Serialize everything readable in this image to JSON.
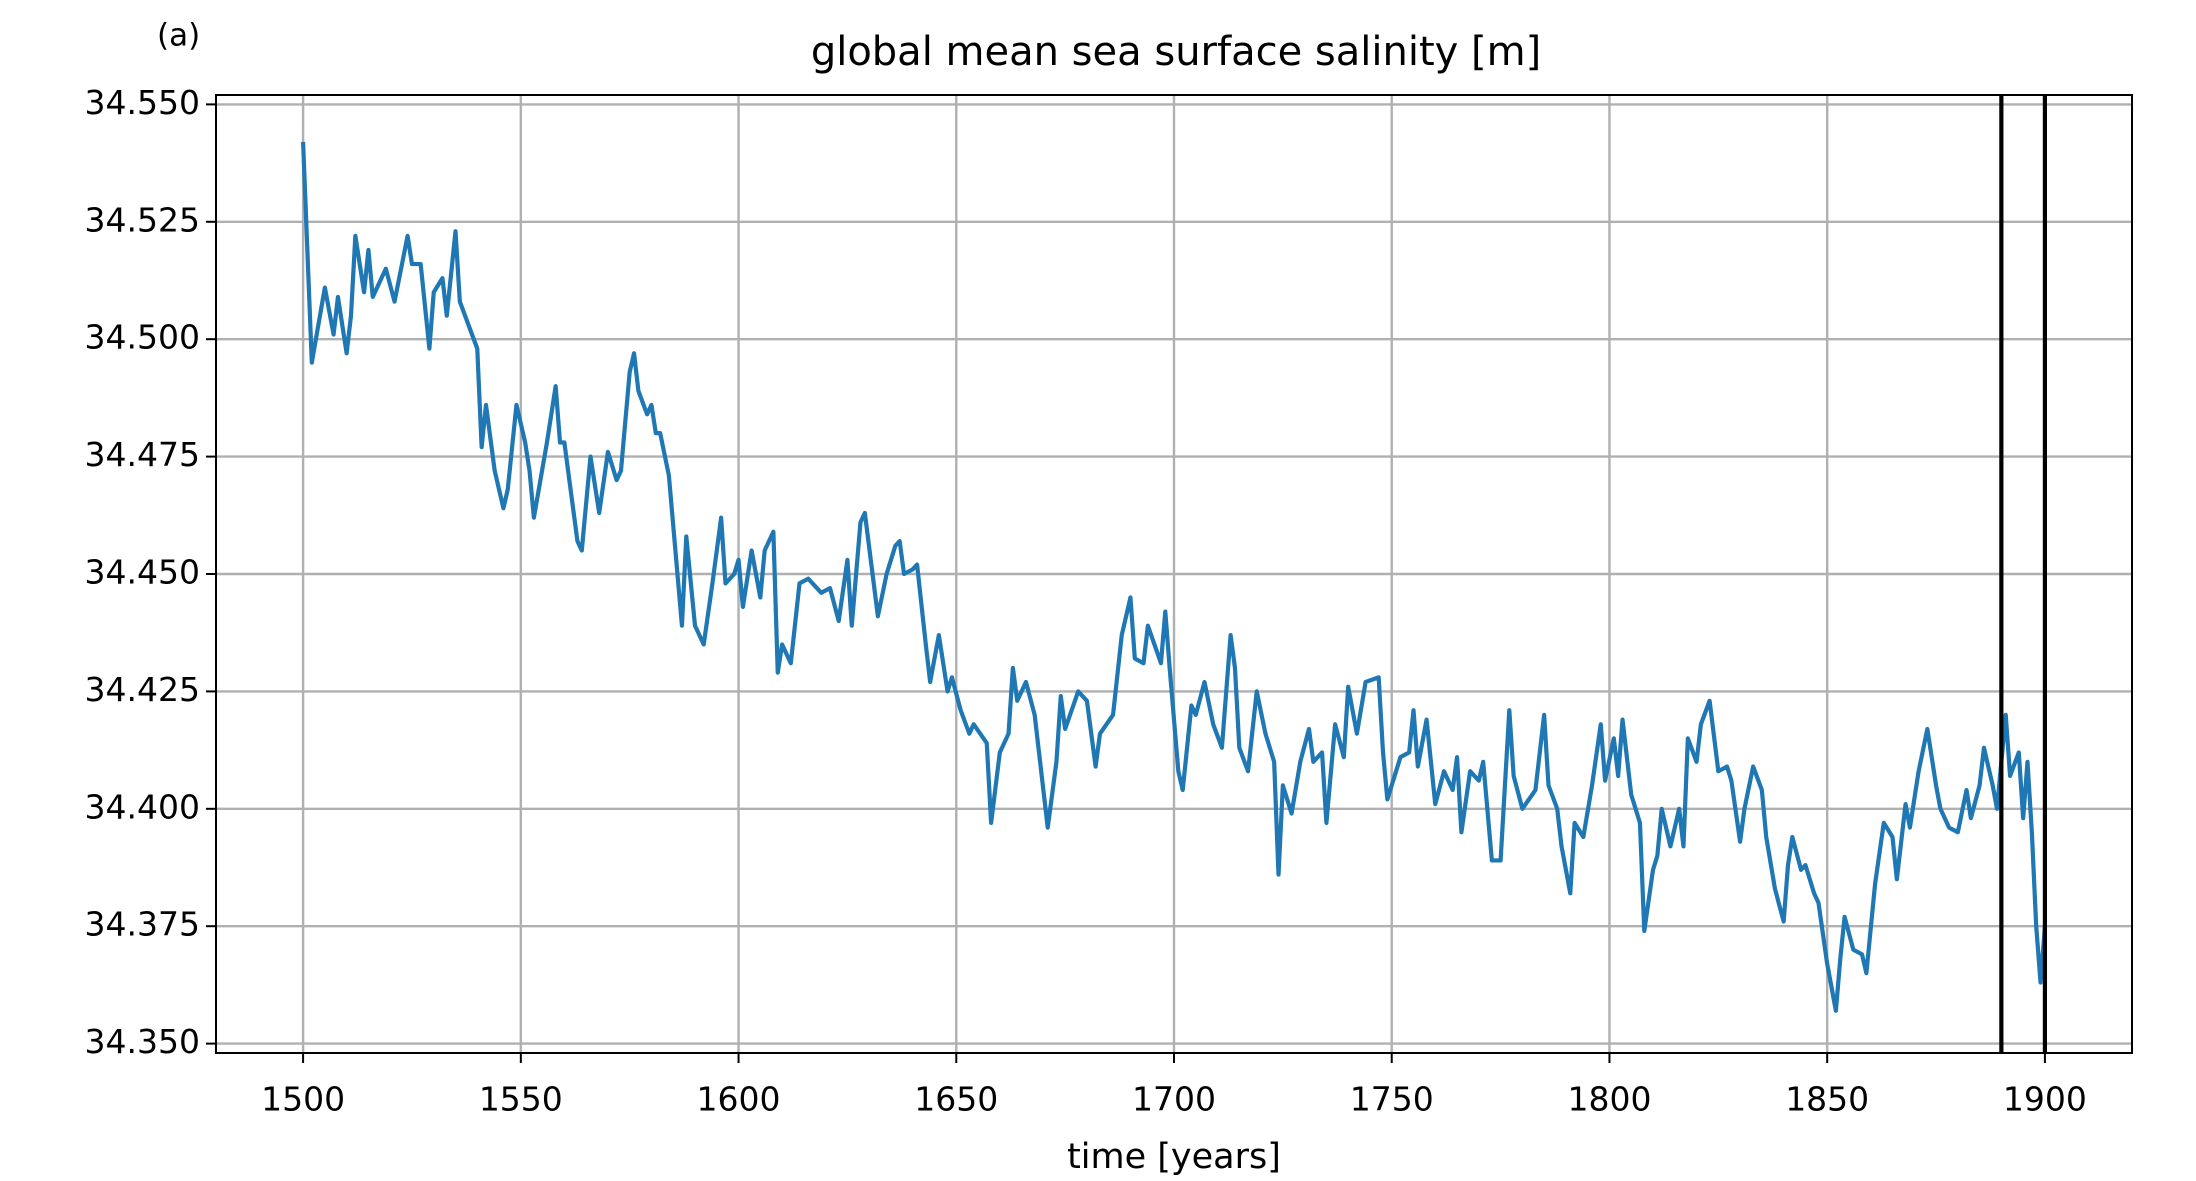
{
  "chart_data": {
    "type": "line",
    "title": "global mean sea surface salinity [m]",
    "annotation": "(a)",
    "xlabel": "time [years]",
    "xlim": [
      1480,
      1920
    ],
    "ylim": [
      34.348,
      34.552
    ],
    "xticks": [
      1500,
      1550,
      1600,
      1650,
      1700,
      1750,
      1800,
      1850,
      1900
    ],
    "yticks": [
      {
        "value": 34.35,
        "label": "34.350"
      },
      34.375,
      {
        "value": 34.4,
        "label": "34.400"
      },
      34.425,
      {
        "value": 34.45,
        "label": "34.450"
      },
      34.475,
      {
        "value": 34.5,
        "label": "34.500"
      },
      34.525,
      {
        "value": 34.55,
        "label": "34.550"
      }
    ],
    "grid": true,
    "vlines": [
      1890,
      1900
    ],
    "vline_color": "#000000",
    "series": [
      {
        "color": "#1f77b4",
        "x": [
          1500,
          1502,
          1505,
          1507,
          1508,
          1510,
          1511,
          1512,
          1514,
          1515,
          1516,
          1519,
          1521,
          1524,
          1525,
          1527,
          1529,
          1530,
          1532,
          1533,
          1535,
          1536,
          1540,
          1541,
          1542,
          1544,
          1546,
          1547,
          1549,
          1551,
          1552,
          1553,
          1556,
          1558,
          1559,
          1560,
          1563,
          1564,
          1566,
          1568,
          1570,
          1572,
          1573,
          1575,
          1576,
          1577,
          1579,
          1580,
          1581,
          1582,
          1584,
          1587,
          1588,
          1590,
          1592,
          1594,
          1596,
          1597,
          1599,
          1600,
          1601,
          1603,
          1605,
          1606,
          1608,
          1609,
          1610,
          1612,
          1614,
          1616,
          1619,
          1621,
          1623,
          1625,
          1626,
          1628,
          1629,
          1632,
          1634,
          1636,
          1637,
          1638,
          1640,
          1641,
          1643,
          1644,
          1646,
          1648,
          1649,
          1651,
          1653,
          1654,
          1657,
          1658,
          1660,
          1662,
          1663,
          1664,
          1666,
          1668,
          1669,
          1671,
          1673,
          1674,
          1675,
          1678,
          1680,
          1682,
          1683,
          1686,
          1688,
          1690,
          1691,
          1693,
          1694,
          1697,
          1698,
          1699,
          1701,
          1702,
          1704,
          1705,
          1707,
          1709,
          1711,
          1713,
          1714,
          1715,
          1717,
          1719,
          1721,
          1723,
          1724,
          1725,
          1727,
          1729,
          1731,
          1732,
          1734,
          1735,
          1737,
          1739,
          1740,
          1742,
          1744,
          1747,
          1748,
          1749,
          1752,
          1754,
          1755,
          1756,
          1758,
          1760,
          1762,
          1764,
          1765,
          1766,
          1768,
          1770,
          1771,
          1773,
          1775,
          1777,
          1778,
          1780,
          1783,
          1785,
          1786,
          1788,
          1789,
          1791,
          1792,
          1794,
          1796,
          1798,
          1799,
          1801,
          1802,
          1803,
          1805,
          1807,
          1808,
          1810,
          1811,
          1812,
          1814,
          1816,
          1817,
          1818,
          1820,
          1821,
          1823,
          1825,
          1827,
          1828,
          1830,
          1831,
          1833,
          1835,
          1836,
          1838,
          1840,
          1841,
          1842,
          1844,
          1845,
          1847,
          1848,
          1850,
          1852,
          1853,
          1854,
          1856,
          1858,
          1859,
          1861,
          1863,
          1865,
          1866,
          1868,
          1869,
          1871,
          1873,
          1875,
          1876,
          1878,
          1880,
          1882,
          1883,
          1885,
          1886,
          1888,
          1889,
          1891,
          1892,
          1894,
          1895,
          1896,
          1897,
          1898,
          1899,
          1900
        ],
        "values": [
          34.542,
          34.495,
          34.511,
          34.501,
          34.509,
          34.497,
          34.505,
          34.522,
          34.51,
          34.519,
          34.509,
          34.515,
          34.508,
          34.522,
          34.516,
          34.516,
          34.498,
          34.51,
          34.513,
          34.505,
          34.523,
          34.508,
          34.498,
          34.477,
          34.486,
          34.472,
          34.464,
          34.468,
          34.486,
          34.478,
          34.472,
          34.462,
          34.478,
          34.49,
          34.478,
          34.478,
          34.457,
          34.455,
          34.475,
          34.463,
          34.476,
          34.47,
          34.472,
          34.493,
          34.497,
          34.489,
          34.484,
          34.486,
          34.48,
          34.48,
          34.471,
          34.439,
          34.458,
          34.439,
          34.435,
          34.448,
          34.462,
          34.448,
          34.45,
          34.453,
          34.443,
          34.455,
          34.445,
          34.455,
          34.459,
          34.429,
          34.435,
          34.431,
          34.448,
          34.449,
          34.446,
          34.447,
          34.44,
          34.453,
          34.439,
          34.461,
          34.463,
          34.441,
          34.45,
          34.456,
          34.457,
          34.45,
          34.451,
          34.452,
          34.435,
          34.427,
          34.437,
          34.425,
          34.428,
          34.421,
          34.416,
          34.418,
          34.414,
          34.397,
          34.412,
          34.416,
          34.43,
          34.423,
          34.427,
          34.42,
          34.412,
          34.396,
          34.41,
          34.424,
          34.417,
          34.425,
          34.423,
          34.409,
          34.416,
          34.42,
          34.437,
          34.445,
          34.432,
          34.431,
          34.439,
          34.431,
          34.442,
          34.43,
          34.408,
          34.404,
          34.422,
          34.42,
          34.427,
          34.418,
          34.413,
          34.437,
          34.43,
          34.413,
          34.408,
          34.425,
          34.416,
          34.41,
          34.386,
          34.405,
          34.399,
          34.41,
          34.417,
          34.41,
          34.412,
          34.397,
          34.418,
          34.411,
          34.426,
          34.416,
          34.427,
          34.428,
          34.412,
          34.402,
          34.411,
          34.412,
          34.421,
          34.409,
          34.419,
          34.401,
          34.408,
          34.404,
          34.411,
          34.395,
          34.408,
          34.406,
          34.41,
          34.389,
          34.389,
          34.421,
          34.407,
          34.4,
          34.404,
          34.42,
          34.405,
          34.4,
          34.392,
          34.382,
          34.397,
          34.394,
          34.405,
          34.418,
          34.406,
          34.415,
          34.407,
          34.419,
          34.403,
          34.397,
          34.374,
          34.387,
          34.39,
          34.4,
          34.392,
          34.4,
          34.392,
          34.415,
          34.41,
          34.418,
          34.423,
          34.408,
          34.409,
          34.406,
          34.393,
          34.4,
          34.409,
          34.404,
          34.394,
          34.383,
          34.376,
          34.388,
          34.394,
          34.387,
          34.388,
          34.382,
          34.38,
          34.367,
          34.357,
          34.368,
          34.377,
          34.37,
          34.369,
          34.365,
          34.384,
          34.397,
          34.394,
          34.385,
          34.401,
          34.396,
          34.408,
          34.417,
          34.405,
          34.4,
          34.396,
          34.395,
          34.404,
          34.398,
          34.405,
          34.413,
          34.405,
          34.4,
          34.42,
          34.407,
          34.412,
          34.398,
          34.41,
          34.395,
          34.375,
          34.363,
          34.375
        ]
      }
    ]
  }
}
